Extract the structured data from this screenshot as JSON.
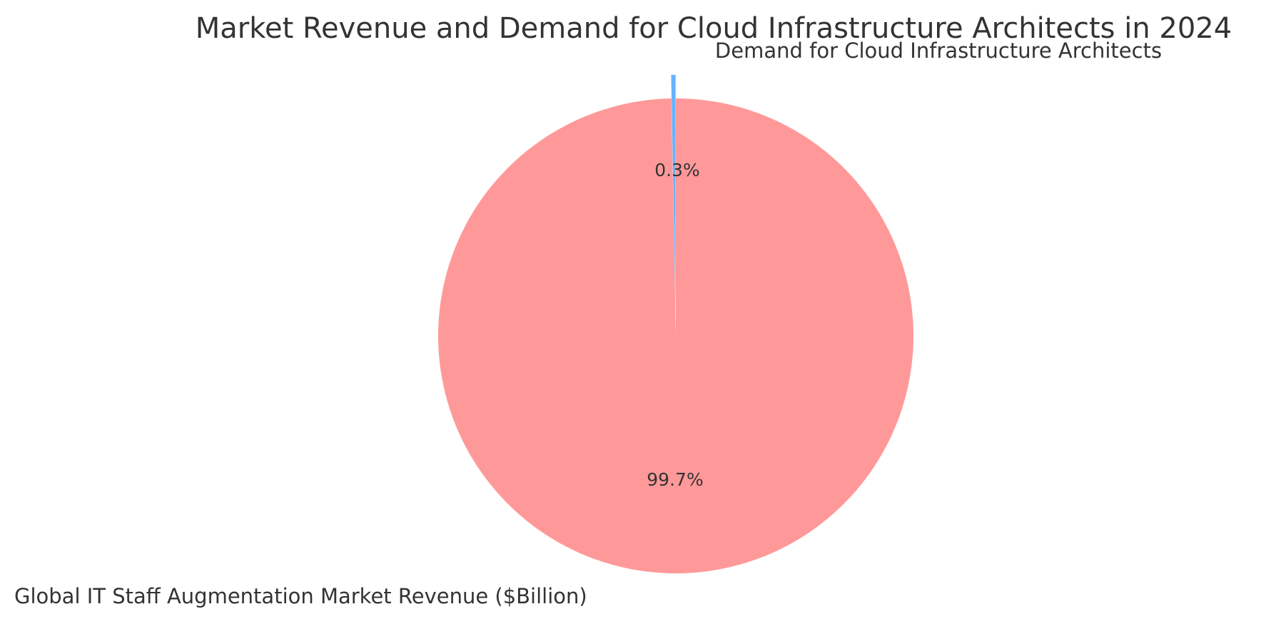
{
  "chart_data": {
    "type": "pie",
    "title": "Market Revenue and Demand for Cloud Infrastructure Architects in 2024",
    "slices": [
      {
        "label": "Demand for Cloud Infrastructure Architects",
        "percent_label": "0.3%",
        "share": 0.3,
        "color": "#66b3ff",
        "exploded": true
      },
      {
        "label": "Global IT Staff Augmentation Market Revenue ($Billion)",
        "percent_label": "99.7%",
        "share": 99.7,
        "color": "#ff9999",
        "exploded": false
      }
    ],
    "start_angle_deg": 90,
    "direction": "counterclockwise",
    "legend": "none"
  }
}
